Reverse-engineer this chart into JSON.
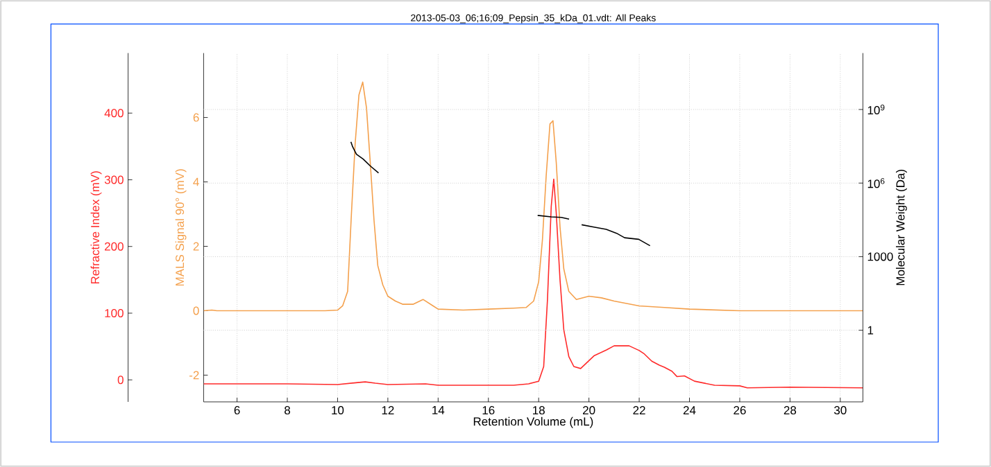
{
  "chart_data": {
    "type": "line",
    "title": "2013-05-03_06;16;09_Pepsin_35_kDa_01.vdt: All Peaks",
    "xlabel": "Retention Volume (mL)",
    "ylabel": "MALS Signal 90° (mV)",
    "y2label": "Molecular Weight (Da)",
    "y3label": "Refractive Index (mV)",
    "xlim": [
      4.67,
      30.9
    ],
    "xticks": [
      6,
      8,
      10,
      12,
      14,
      16,
      18,
      20,
      22,
      24,
      26,
      28,
      30
    ],
    "ylim": [
      -2.83,
      8
    ],
    "yticks": [
      -2,
      0,
      2,
      4,
      6
    ],
    "y2lim": [
      0.0012,
      200000000000.0
    ],
    "y2ticks": [
      1,
      1000,
      {
        "value": 1000000,
        "label": "10$^{6}$"
      },
      {
        "value": 1000000000,
        "label": "10$^{9}$"
      }
    ],
    "y3lim": [
      -33,
      490
    ],
    "y3ticks": [
      0,
      100,
      200,
      300,
      400
    ],
    "log": "y2",
    "grid": true,
    "series": [
      {
        "axis": "y",
        "color": "#f4a04c",
        "x": [
          4.67,
          5.0,
          5.2,
          6,
          8,
          9.5,
          10.0,
          10.2,
          10.4,
          10.55,
          10.7,
          10.85,
          11.0,
          11.15,
          11.3,
          11.45,
          11.6,
          11.8,
          12.0,
          12.3,
          12.6,
          13.0,
          13.4,
          13.8,
          14.0,
          15,
          16,
          17,
          17.5,
          17.8,
          18.0,
          18.15,
          18.3,
          18.45,
          18.57,
          18.7,
          18.85,
          19.0,
          19.2,
          19.5,
          20.0,
          20.5,
          21,
          22,
          23,
          24,
          26,
          28,
          30.9
        ],
        "values": [
          0,
          0.02,
          0,
          0,
          0,
          0,
          0.02,
          0.15,
          0.6,
          3.0,
          5.2,
          6.7,
          7.1,
          6.3,
          4.6,
          2.8,
          1.4,
          0.8,
          0.45,
          0.3,
          0.2,
          0.2,
          0.35,
          0.15,
          0.05,
          0.02,
          0.05,
          0.08,
          0.1,
          0.3,
          0.9,
          2.2,
          4.2,
          5.8,
          5.9,
          4.6,
          2.6,
          1.3,
          0.6,
          0.35,
          0.45,
          0.4,
          0.3,
          0.15,
          0.1,
          0.05,
          0,
          0,
          0
        ]
      },
      {
        "axis": "y3",
        "color": "#ff2a2a",
        "x": [
          4.67,
          6,
          8,
          10,
          10.8,
          11.1,
          11.5,
          12,
          13.5,
          14,
          16,
          17,
          17.6,
          18.0,
          18.2,
          18.35,
          18.5,
          18.6,
          18.7,
          18.85,
          19.0,
          19.2,
          19.4,
          19.67,
          20.2,
          20.7,
          21.0,
          21.6,
          22.0,
          22.2,
          22.5,
          22.8,
          23.0,
          23.3,
          23.5,
          23.8,
          24.2,
          25,
          26,
          26.3,
          28,
          30.9
        ],
        "values": [
          -6,
          -6,
          -6,
          -7,
          -4,
          -3,
          -5,
          -7,
          -6,
          -8,
          -8,
          -8,
          -6,
          -2,
          20,
          120,
          260,
          301,
          250,
          150,
          75,
          35,
          20,
          17,
          36,
          45,
          51,
          51,
          44,
          39,
          28,
          22,
          19,
          13,
          5,
          6,
          -2,
          -8,
          -9,
          -12,
          -11,
          -12
        ]
      },
      {
        "axis": "y2",
        "color": "#000000",
        "x": [
          10.53,
          10.6,
          10.75,
          11.02,
          11.3,
          11.63,
          14.0,
          17.96,
          18.5,
          18.9,
          19.21,
          19.45,
          19.71,
          20.2,
          20.69,
          21.1,
          21.42,
          21.98,
          22.43
        ],
        "values": [
          48000000,
          30000000,
          15000000,
          9500000,
          5000000,
          2600000,
          null,
          48000,
          42000,
          40000,
          34000,
          null,
          20000,
          16000,
          13000,
          9000,
          5900,
          5100,
          2800
        ]
      }
    ]
  }
}
